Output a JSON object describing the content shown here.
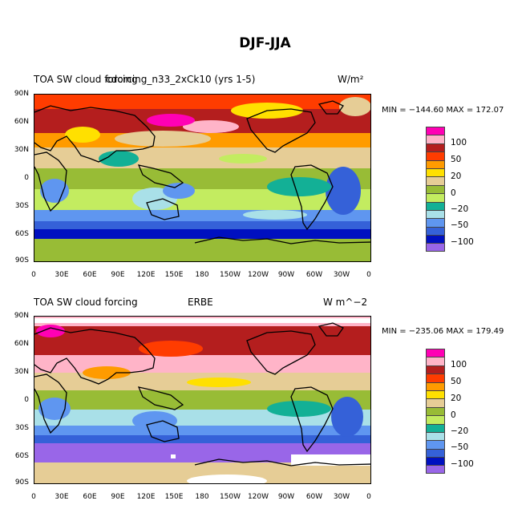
{
  "title": "DJF-JJA",
  "palette": [
    "#ff00b4",
    "#ffb4c8",
    "#b41e1e",
    "#ff3c00",
    "#ff9b00",
    "#ffe000",
    "#e6cd96",
    "#98bc36",
    "#c3ec60",
    "#13b096",
    "#a9e0e8",
    "#5f96f0",
    "#3561d8",
    "#0010c0",
    "#9966e8"
  ],
  "colorbar_labels": [
    "100",
    "50",
    "20",
    "0",
    "−20",
    "−50",
    "−100"
  ],
  "lat_labels": [
    "90N",
    "60N",
    "30N",
    "0",
    "30S",
    "60S",
    "90S"
  ],
  "lon_labels": [
    "0",
    "30E",
    "60E",
    "90E",
    "120E",
    "150E",
    "180",
    "150W",
    "120W",
    "90W",
    "60W",
    "30W",
    "0"
  ],
  "panels": [
    {
      "left_title": "TOA SW cloud forcing",
      "center_title": "cdorcing_n33_2xCk10 (yrs 1-5)",
      "units": "W/m²",
      "stats": "MIN = −144.60  MAX = 172.07"
    },
    {
      "left_title": "TOA SW cloud forcing",
      "center_title": "ERBE",
      "units": "W m^−2",
      "stats": "MIN = −235.06  MAX = 179.49"
    }
  ]
}
